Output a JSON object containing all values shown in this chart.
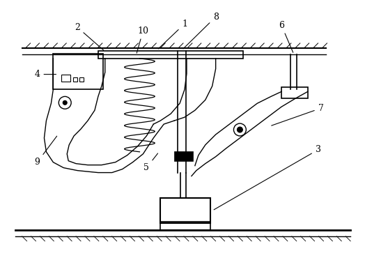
{
  "background_color": "#ffffff",
  "line_color": "#000000",
  "label_color": "#000000",
  "fig_width": 5.24,
  "fig_height": 3.83,
  "dpi": 100
}
